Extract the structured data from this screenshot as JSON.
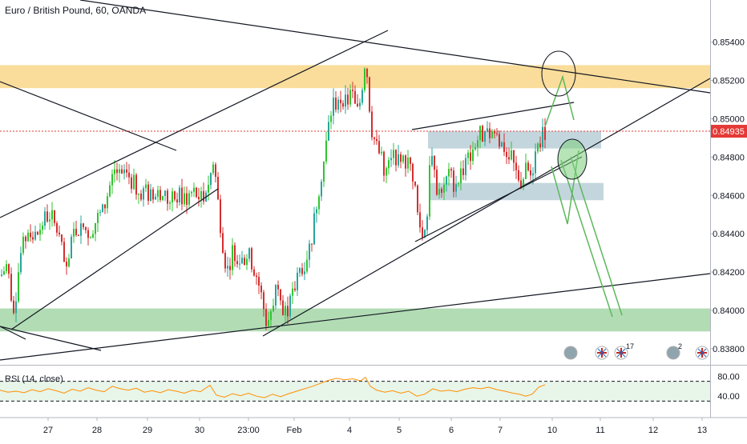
{
  "header": {
    "title": "Euro / British Pound, 60, OANDA"
  },
  "rsi": {
    "label": "RSI (14, close)",
    "upper": 70,
    "lower": 30,
    "tick_labels": [
      "80.00",
      "40.00"
    ]
  },
  "colors": {
    "up": "#26a69a",
    "up_bright": "#2fc52f",
    "down": "#d32f2f",
    "price_line": "#e53935",
    "rsi_line": "#ff8f00",
    "resistance_zone": "#f9d78a",
    "support_zone": "#a5d6a7",
    "consolidation_zone": "#b0c8d2",
    "projection": "#5cb85c"
  },
  "chart_data": [
    {
      "type": "candlestick",
      "title": "Euro / British Pound, 60, OANDA",
      "ylim": [
        0.8372,
        0.8562
      ],
      "y_ticks": [
        "0.85400",
        "0.85200",
        "0.85000",
        "0.84800",
        "0.84600",
        "0.84400",
        "0.84200",
        "0.84000",
        "0.83800"
      ],
      "x_ticks": [
        "27",
        "28",
        "29",
        "30",
        "23:00",
        "Feb",
        "4",
        "5",
        "6",
        "7",
        "10",
        "11",
        "12",
        "13"
      ],
      "current_price": "0.84935",
      "zones": [
        {
          "name": "resistance",
          "from": 0.8516,
          "to": 0.8528
        },
        {
          "name": "support",
          "from": 0.8389,
          "to": 0.8401
        },
        {
          "name": "consolidation-upper",
          "from": 0.8487,
          "to": 0.8491
        },
        {
          "name": "consolidation-lower",
          "from": 0.846,
          "to": 0.8464
        }
      ],
      "event_icons": [
        "",
        "",
        "17",
        "2",
        ""
      ],
      "close_path": [
        [
          0,
          0.8418
        ],
        [
          8,
          0.8424
        ],
        [
          16,
          0.8398
        ],
        [
          24,
          0.8428
        ],
        [
          34,
          0.8442
        ],
        [
          44,
          0.8438
        ],
        [
          54,
          0.8448
        ],
        [
          62,
          0.845
        ],
        [
          72,
          0.844
        ],
        [
          82,
          0.8418
        ],
        [
          90,
          0.844
        ],
        [
          100,
          0.8445
        ],
        [
          110,
          0.844
        ],
        [
          120,
          0.8448
        ],
        [
          128,
          0.8452
        ],
        [
          136,
          0.8465
        ],
        [
          142,
          0.8474
        ],
        [
          150,
          0.8468
        ],
        [
          160,
          0.847
        ],
        [
          170,
          0.8463
        ],
        [
          180,
          0.8462
        ],
        [
          190,
          0.8458
        ],
        [
          200,
          0.8462
        ],
        [
          210,
          0.8456
        ],
        [
          220,
          0.846
        ],
        [
          230,
          0.8458
        ],
        [
          240,
          0.8462
        ],
        [
          250,
          0.8458
        ],
        [
          260,
          0.8468
        ],
        [
          266,
          0.8478
        ],
        [
          270,
          0.846
        ],
        [
          276,
          0.8438
        ],
        [
          282,
          0.842
        ],
        [
          290,
          0.8432
        ],
        [
          300,
          0.8425
        ],
        [
          308,
          0.843
        ],
        [
          318,
          0.842
        ],
        [
          324,
          0.841
        ],
        [
          332,
          0.8392
        ],
        [
          338,
          0.8402
        ],
        [
          346,
          0.8416
        ],
        [
          352,
          0.8398
        ],
        [
          360,
          0.8402
        ],
        [
          366,
          0.841
        ],
        [
          372,
          0.842
        ],
        [
          380,
          0.8426
        ],
        [
          388,
          0.8438
        ],
        [
          396,
          0.8462
        ],
        [
          404,
          0.848
        ],
        [
          410,
          0.85
        ],
        [
          416,
          0.851
        ],
        [
          420,
          0.8506
        ],
        [
          426,
          0.8512
        ],
        [
          432,
          0.8508
        ],
        [
          438,
          0.8514
        ],
        [
          444,
          0.8502
        ],
        [
          450,
          0.8512
        ],
        [
          455,
          0.8534
        ],
        [
          458,
          0.8518
        ],
        [
          462,
          0.8496
        ],
        [
          468,
          0.8486
        ],
        [
          474,
          0.848
        ],
        [
          480,
          0.8472
        ],
        [
          486,
          0.8476
        ],
        [
          492,
          0.8482
        ],
        [
          498,
          0.8474
        ],
        [
          504,
          0.8478
        ],
        [
          510,
          0.8476
        ],
        [
          516,
          0.8468
        ],
        [
          520,
          0.845
        ],
        [
          526,
          0.8438
        ],
        [
          532,
          0.845
        ],
        [
          536,
          0.8488
        ],
        [
          540,
          0.847
        ],
        [
          546,
          0.8462
        ],
        [
          552,
          0.8466
        ],
        [
          560,
          0.847
        ],
        [
          566,
          0.8466
        ],
        [
          574,
          0.8472
        ],
        [
          582,
          0.8478
        ],
        [
          590,
          0.8486
        ],
        [
          598,
          0.8492
        ],
        [
          606,
          0.849
        ],
        [
          614,
          0.8494
        ],
        [
          622,
          0.8488
        ],
        [
          630,
          0.8484
        ],
        [
          638,
          0.8478
        ],
        [
          644,
          0.847
        ],
        [
          650,
          0.8468
        ],
        [
          656,
          0.8474
        ],
        [
          662,
          0.847
        ],
        [
          668,
          0.8484
        ],
        [
          674,
          0.849
        ],
        [
          680,
          0.84935
        ]
      ],
      "rsi_path": [
        [
          0,
          52
        ],
        [
          10,
          48
        ],
        [
          20,
          50
        ],
        [
          30,
          47
        ],
        [
          40,
          53
        ],
        [
          50,
          49
        ],
        [
          60,
          55
        ],
        [
          70,
          51
        ],
        [
          80,
          46
        ],
        [
          90,
          54
        ],
        [
          100,
          50
        ],
        [
          110,
          57
        ],
        [
          120,
          52
        ],
        [
          130,
          49
        ],
        [
          140,
          60
        ],
        [
          150,
          55
        ],
        [
          160,
          52
        ],
        [
          170,
          56
        ],
        [
          180,
          48
        ],
        [
          190,
          51
        ],
        [
          200,
          47
        ],
        [
          210,
          53
        ],
        [
          220,
          50
        ],
        [
          230,
          46
        ],
        [
          240,
          52
        ],
        [
          250,
          49
        ],
        [
          262,
          62
        ],
        [
          270,
          42
        ],
        [
          280,
          38
        ],
        [
          290,
          45
        ],
        [
          300,
          41
        ],
        [
          310,
          46
        ],
        [
          320,
          40
        ],
        [
          330,
          37
        ],
        [
          340,
          44
        ],
        [
          350,
          39
        ],
        [
          360,
          45
        ],
        [
          370,
          50
        ],
        [
          380,
          55
        ],
        [
          390,
          60
        ],
        [
          400,
          66
        ],
        [
          410,
          72
        ],
        [
          420,
          76
        ],
        [
          430,
          73
        ],
        [
          440,
          75
        ],
        [
          450,
          71
        ],
        [
          456,
          78
        ],
        [
          462,
          60
        ],
        [
          470,
          52
        ],
        [
          480,
          48
        ],
        [
          490,
          51
        ],
        [
          500,
          46
        ],
        [
          510,
          50
        ],
        [
          520,
          40
        ],
        [
          530,
          44
        ],
        [
          540,
          55
        ],
        [
          550,
          50
        ],
        [
          560,
          52
        ],
        [
          570,
          49
        ],
        [
          580,
          54
        ],
        [
          590,
          57
        ],
        [
          600,
          55
        ],
        [
          610,
          58
        ],
        [
          620,
          53
        ],
        [
          630,
          50
        ],
        [
          640,
          46
        ],
        [
          648,
          44
        ],
        [
          656,
          40
        ],
        [
          664,
          44
        ],
        [
          672,
          58
        ],
        [
          680,
          63
        ]
      ]
    }
  ]
}
